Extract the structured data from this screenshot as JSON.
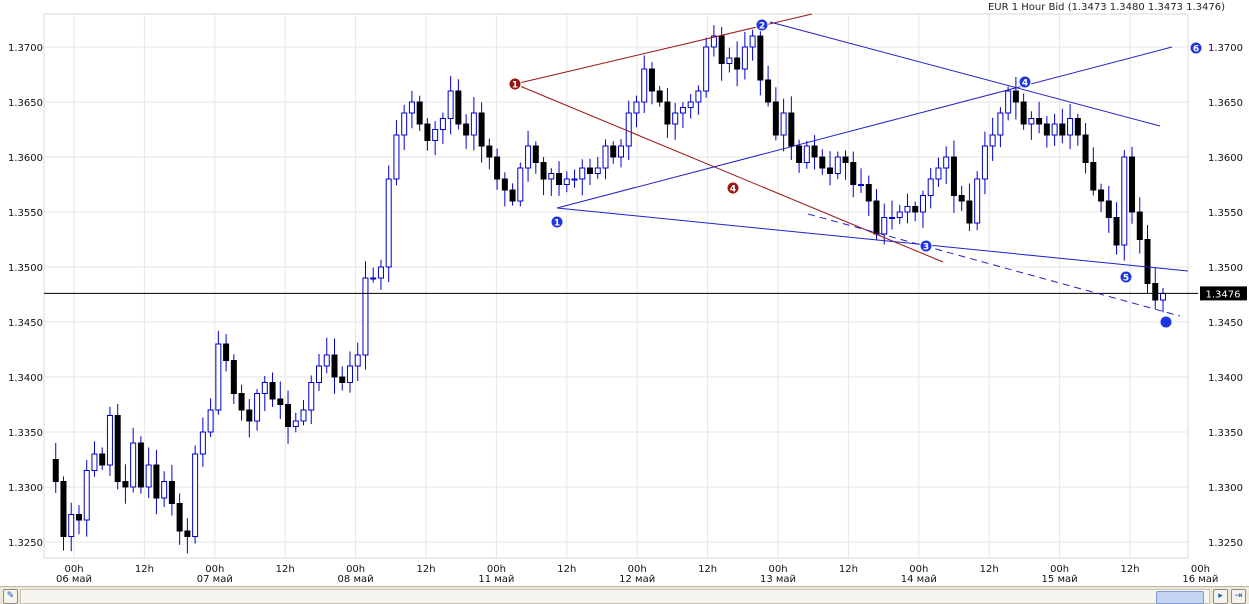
{
  "header": {
    "title": "EUR 1 Hour Bid (1.3473 1.3480 1.3473 1.3476)"
  },
  "price_marker": {
    "label": "1.3476"
  },
  "colors": {
    "candle_up": "#ffffff",
    "candle_down": "#000000",
    "wick": "#0000cc",
    "blue_lines": "#2121c6",
    "red_lines": "#9a1414",
    "grid": "#e5e5ea"
  },
  "chart_data": {
    "type": "candlestick",
    "ylim": [
      1.3225,
      1.3725
    ],
    "xlim": [
      "2008-05-05 21:00",
      "2008-05-16 03:00"
    ],
    "y_ticks_left": [
      "1.3700",
      "1.3650",
      "1.3600",
      "1.3550",
      "1.3500",
      "1.3450",
      "1.3400",
      "1.3350",
      "1.3300",
      "1.3250"
    ],
    "y_ticks_right": [
      "1.3700",
      "1.3650",
      "1.3600",
      "1.3550",
      "1.3500",
      "1.3450",
      "1.3400",
      "1.3350",
      "1.3300",
      "1.3250"
    ],
    "x_ticks": [
      {
        "hour": "00h",
        "day": "06 май"
      },
      {
        "hour": "12h",
        "day": ""
      },
      {
        "hour": "00h",
        "day": "07 май"
      },
      {
        "hour": "12h",
        "day": ""
      },
      {
        "hour": "00h",
        "day": "08 май"
      },
      {
        "hour": "12h",
        "day": ""
      },
      {
        "hour": "00h",
        "day": "11 май"
      },
      {
        "hour": "12h",
        "day": ""
      },
      {
        "hour": "00h",
        "day": "12 май"
      },
      {
        "hour": "12h",
        "day": ""
      },
      {
        "hour": "00h",
        "day": "13 май"
      },
      {
        "hour": "12h",
        "day": ""
      },
      {
        "hour": "00h",
        "day": "14 май"
      },
      {
        "hour": "12h",
        "day": ""
      },
      {
        "hour": "00h",
        "day": "15 май"
      },
      {
        "hour": "12h",
        "day": ""
      },
      {
        "hour": "00h",
        "day": "16 май"
      }
    ],
    "horizontal_line": 1.3476,
    "candle_path": [
      1.3325,
      1.3305,
      1.3255,
      1.3275,
      1.327,
      1.3315,
      1.333,
      1.332,
      1.3365,
      1.3305,
      1.33,
      1.334,
      1.33,
      1.332,
      1.329,
      1.3305,
      1.3285,
      1.326,
      1.3255,
      1.333,
      1.335,
      1.337,
      1.343,
      1.3415,
      1.3385,
      1.337,
      1.336,
      1.3385,
      1.3395,
      1.338,
      1.3375,
      1.3355,
      1.336,
      1.337,
      1.3395,
      1.341,
      1.342,
      1.34,
      1.3395,
      1.341,
      1.342,
      1.349,
      1.349,
      1.35,
      1.358,
      1.362,
      1.364,
      1.365,
      1.363,
      1.3615,
      1.3625,
      1.3635,
      1.366,
      1.363,
      1.362,
      1.364,
      1.361,
      1.36,
      1.358,
      1.357,
      1.356,
      1.359,
      1.361,
      1.3595,
      1.358,
      1.3585,
      1.3575,
      1.358,
      1.358,
      1.359,
      1.3585,
      1.359,
      1.361,
      1.36,
      1.361,
      1.364,
      1.365,
      1.368,
      1.366,
      1.365,
      1.363,
      1.364,
      1.3645,
      1.365,
      1.366,
      1.37,
      1.371,
      1.3685,
      1.369,
      1.368,
      1.37,
      1.371,
      1.367,
      1.365,
      1.362,
      1.364,
      1.361,
      1.3595,
      1.361,
      1.36,
      1.359,
      1.3585,
      1.36,
      1.3595,
      1.3575,
      1.3575,
      1.356,
      1.353,
      1.3545,
      1.3545,
      1.355,
      1.3555,
      1.355,
      1.3565,
      1.358,
      1.359,
      1.36,
      1.3565,
      1.356,
      1.354,
      1.358,
      1.361,
      1.362,
      1.364,
      1.366,
      1.365,
      1.363,
      1.3635,
      1.363,
      1.362,
      1.363,
      1.362,
      1.3635,
      1.362,
      1.3595,
      1.357,
      1.356,
      1.3545,
      1.352,
      1.36,
      1.355,
      1.3525,
      1.3485,
      1.347,
      1.3476
    ],
    "annotations": [
      {
        "label": "1",
        "color": "blue"
      },
      {
        "label": "2",
        "color": "blue"
      },
      {
        "label": "3",
        "color": "blue"
      },
      {
        "label": "4",
        "color": "blue"
      },
      {
        "label": "5",
        "color": "blue"
      },
      {
        "label": "6",
        "color": "blue"
      },
      {
        "label": "",
        "color": "blue"
      },
      {
        "label": "1",
        "color": "red"
      },
      {
        "label": "4",
        "color": "red"
      }
    ]
  }
}
